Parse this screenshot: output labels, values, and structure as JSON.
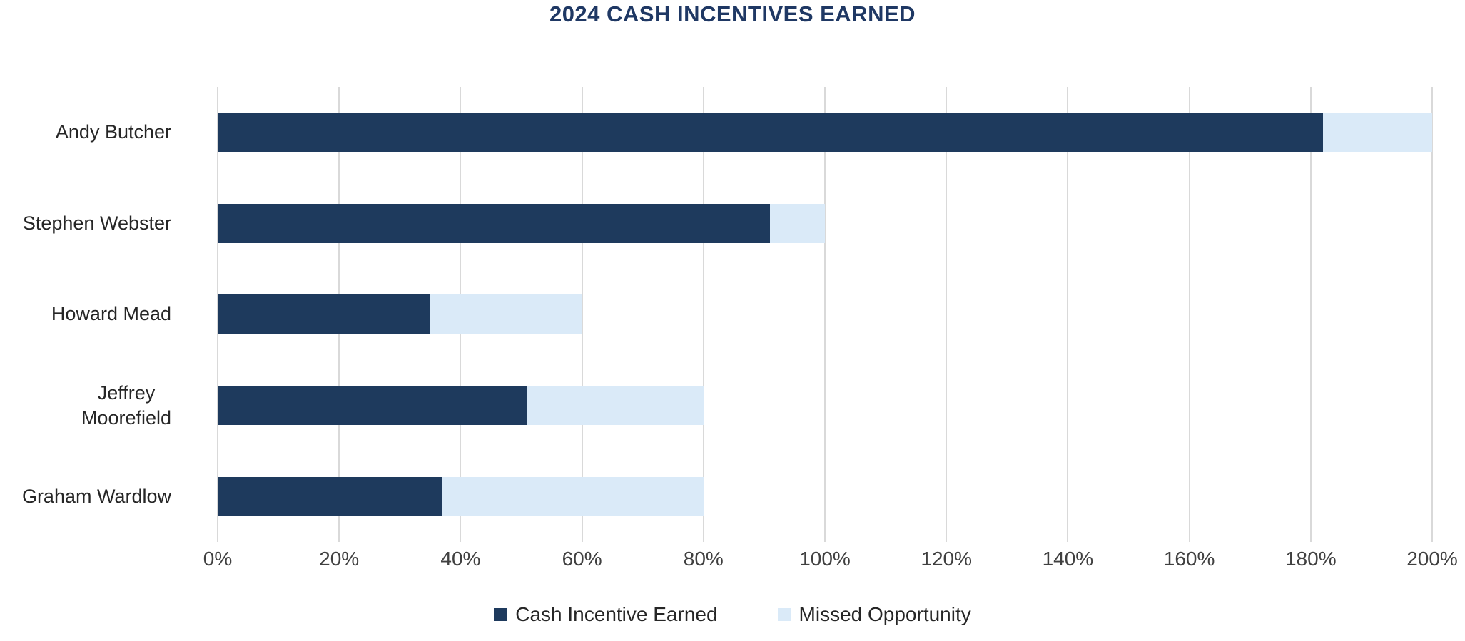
{
  "title": "2024 CASH INCENTIVES EARNED",
  "chart_data": {
    "type": "bar",
    "orientation": "horizontal",
    "stacked": true,
    "title": "2024 CASH INCENTIVES EARNED",
    "categories": [
      {
        "name": "Andy Butcher",
        "lines": [
          "Andy Butcher"
        ]
      },
      {
        "name": "Stephen Webster",
        "lines": [
          "Stephen Webster"
        ]
      },
      {
        "name": "Howard Mead",
        "lines": [
          "Howard Mead"
        ]
      },
      {
        "name": "Jeffrey Moorefield",
        "lines": [
          "Jeffrey",
          "Moorefield"
        ]
      },
      {
        "name": "Graham Wardlow",
        "lines": [
          "Graham Wardlow"
        ]
      }
    ],
    "series": [
      {
        "name": "Cash Incentive Earned",
        "color": "#1E3A5D",
        "values": [
          182,
          91,
          35,
          51,
          37
        ]
      },
      {
        "name": "Missed Opportunity",
        "color": "#DAEAF8",
        "values": [
          18,
          9,
          25,
          29,
          43
        ]
      }
    ],
    "totals": [
      200,
      100,
      60,
      80,
      80
    ],
    "x_axis": {
      "min": 0,
      "max": 200,
      "tick_step": 20,
      "unit": "%",
      "tick_labels": [
        "0%",
        "20%",
        "40%",
        "60%",
        "80%",
        "100%",
        "120%",
        "140%",
        "160%",
        "180%",
        "200%"
      ]
    },
    "grid": "vertical gridlines on",
    "legend_position": "bottom",
    "colors": {
      "title_text": "#1F3864",
      "gridline": "#D9D9D9",
      "axis_text": "#404040",
      "category_text": "#262626",
      "legend_text": "#262626"
    }
  }
}
